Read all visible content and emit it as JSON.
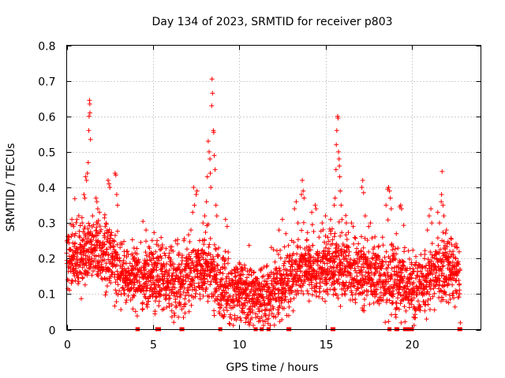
{
  "chart_data": {
    "type": "scatter",
    "title": "Day 134 of 2023, SRMTID for receiver p803",
    "xlabel": "GPS time / hours",
    "ylabel": "SRMTID / TECUs",
    "xlim": [
      0,
      24
    ],
    "ylim": [
      0,
      0.8
    ],
    "x_ticks": [
      "0",
      "5",
      "10",
      "15",
      "20"
    ],
    "x_tick_values": [
      0,
      5,
      10,
      15,
      20
    ],
    "y_ticks": [
      "0",
      "0.1",
      "0.2",
      "0.3",
      "0.4",
      "0.5",
      "0.6",
      "0.7",
      "0.8"
    ],
    "y_tick_values": [
      0,
      0.1,
      0.2,
      0.3,
      0.4,
      0.5,
      0.6,
      0.7,
      0.8
    ],
    "grid": true,
    "marker": "+",
    "color": "#ff0000",
    "x_extent": [
      0,
      22.8
    ],
    "sample_interval_hours": 0.0125,
    "seed": 134,
    "baseline_profile": [
      [
        0.0,
        0.19
      ],
      [
        0.8,
        0.2
      ],
      [
        1.5,
        0.24
      ],
      [
        2.5,
        0.2
      ],
      [
        3.5,
        0.14
      ],
      [
        4.5,
        0.15
      ],
      [
        5.5,
        0.14
      ],
      [
        6.5,
        0.13
      ],
      [
        7.5,
        0.16
      ],
      [
        8.3,
        0.18
      ],
      [
        8.8,
        0.12
      ],
      [
        9.5,
        0.11
      ],
      [
        10.5,
        0.1
      ],
      [
        11.0,
        0.08
      ],
      [
        11.5,
        0.09
      ],
      [
        12.5,
        0.12
      ],
      [
        13.5,
        0.16
      ],
      [
        14.5,
        0.17
      ],
      [
        15.5,
        0.18
      ],
      [
        16.5,
        0.17
      ],
      [
        17.5,
        0.15
      ],
      [
        18.5,
        0.14
      ],
      [
        19.5,
        0.12
      ],
      [
        20.5,
        0.12
      ],
      [
        21.2,
        0.15
      ],
      [
        22.0,
        0.18
      ],
      [
        22.8,
        0.15
      ]
    ],
    "spikes": [
      {
        "x": 0.3,
        "y": 0.31
      },
      {
        "x": 0.35,
        "y": 0.295
      },
      {
        "x": 0.4,
        "y": 0.29
      },
      {
        "x": 0.6,
        "y": 0.31
      },
      {
        "x": 0.9,
        "y": 0.3
      },
      {
        "x": 1.0,
        "y": 0.38
      },
      {
        "x": 1.05,
        "y": 0.37
      },
      {
        "x": 1.1,
        "y": 0.43
      },
      {
        "x": 1.15,
        "y": 0.42
      },
      {
        "x": 1.2,
        "y": 0.44
      },
      {
        "x": 1.25,
        "y": 0.47
      },
      {
        "x": 1.28,
        "y": 0.56
      },
      {
        "x": 1.3,
        "y": 0.6
      },
      {
        "x": 1.32,
        "y": 0.645
      },
      {
        "x": 1.34,
        "y": 0.635
      },
      {
        "x": 1.35,
        "y": 0.61
      },
      {
        "x": 1.38,
        "y": 0.535
      },
      {
        "x": 1.5,
        "y": 0.32
      },
      {
        "x": 1.7,
        "y": 0.37
      },
      {
        "x": 1.75,
        "y": 0.36
      },
      {
        "x": 1.8,
        "y": 0.34
      },
      {
        "x": 1.9,
        "y": 0.33
      },
      {
        "x": 2.4,
        "y": 0.42
      },
      {
        "x": 2.45,
        "y": 0.41
      },
      {
        "x": 2.5,
        "y": 0.4
      },
      {
        "x": 2.8,
        "y": 0.44
      },
      {
        "x": 2.85,
        "y": 0.435
      },
      {
        "x": 2.9,
        "y": 0.38
      },
      {
        "x": 2.95,
        "y": 0.35
      },
      {
        "x": 4.6,
        "y": 0.28
      },
      {
        "x": 5.2,
        "y": 0.24
      },
      {
        "x": 6.3,
        "y": 0.25
      },
      {
        "x": 7.2,
        "y": 0.28
      },
      {
        "x": 7.3,
        "y": 0.33
      },
      {
        "x": 7.35,
        "y": 0.4
      },
      {
        "x": 7.4,
        "y": 0.35
      },
      {
        "x": 7.5,
        "y": 0.38
      },
      {
        "x": 7.55,
        "y": 0.39
      },
      {
        "x": 7.9,
        "y": 0.3
      },
      {
        "x": 8.0,
        "y": 0.32
      },
      {
        "x": 8.1,
        "y": 0.36
      },
      {
        "x": 8.15,
        "y": 0.43
      },
      {
        "x": 8.2,
        "y": 0.53
      },
      {
        "x": 8.25,
        "y": 0.5
      },
      {
        "x": 8.3,
        "y": 0.48
      },
      {
        "x": 8.32,
        "y": 0.44
      },
      {
        "x": 8.35,
        "y": 0.4
      },
      {
        "x": 8.4,
        "y": 0.63
      },
      {
        "x": 8.42,
        "y": 0.705
      },
      {
        "x": 8.45,
        "y": 0.665
      },
      {
        "x": 8.5,
        "y": 0.56
      },
      {
        "x": 8.52,
        "y": 0.555
      },
      {
        "x": 8.55,
        "y": 0.49
      },
      {
        "x": 8.6,
        "y": 0.45
      },
      {
        "x": 8.65,
        "y": 0.35
      },
      {
        "x": 8.7,
        "y": 0.32
      },
      {
        "x": 9.2,
        "y": 0.31
      },
      {
        "x": 9.3,
        "y": 0.29
      },
      {
        "x": 12.3,
        "y": 0.28
      },
      {
        "x": 12.5,
        "y": 0.31
      },
      {
        "x": 12.7,
        "y": 0.27
      },
      {
        "x": 13.2,
        "y": 0.34
      },
      {
        "x": 13.3,
        "y": 0.36
      },
      {
        "x": 13.4,
        "y": 0.3
      },
      {
        "x": 13.6,
        "y": 0.38
      },
      {
        "x": 13.65,
        "y": 0.42
      },
      {
        "x": 13.7,
        "y": 0.39
      },
      {
        "x": 13.75,
        "y": 0.37
      },
      {
        "x": 14.2,
        "y": 0.33
      },
      {
        "x": 14.4,
        "y": 0.35
      },
      {
        "x": 14.45,
        "y": 0.34
      },
      {
        "x": 14.8,
        "y": 0.3
      },
      {
        "x": 15.0,
        "y": 0.32
      },
      {
        "x": 15.3,
        "y": 0.27
      },
      {
        "x": 15.5,
        "y": 0.35
      },
      {
        "x": 15.55,
        "y": 0.37
      },
      {
        "x": 15.6,
        "y": 0.45
      },
      {
        "x": 15.62,
        "y": 0.52
      },
      {
        "x": 15.65,
        "y": 0.56
      },
      {
        "x": 15.7,
        "y": 0.6
      },
      {
        "x": 15.72,
        "y": 0.595
      },
      {
        "x": 15.75,
        "y": 0.5
      },
      {
        "x": 15.78,
        "y": 0.48
      },
      {
        "x": 15.8,
        "y": 0.46
      },
      {
        "x": 15.82,
        "y": 0.43
      },
      {
        "x": 15.85,
        "y": 0.39
      },
      {
        "x": 15.9,
        "y": 0.35
      },
      {
        "x": 15.95,
        "y": 0.31
      },
      {
        "x": 16.2,
        "y": 0.3
      },
      {
        "x": 16.5,
        "y": 0.3
      },
      {
        "x": 16.6,
        "y": 0.29
      },
      {
        "x": 17.1,
        "y": 0.4
      },
      {
        "x": 17.15,
        "y": 0.42
      },
      {
        "x": 17.2,
        "y": 0.385
      },
      {
        "x": 17.3,
        "y": 0.32
      },
      {
        "x": 17.5,
        "y": 0.29
      },
      {
        "x": 17.6,
        "y": 0.3
      },
      {
        "x": 18.3,
        "y": 0.26
      },
      {
        "x": 18.5,
        "y": 0.35
      },
      {
        "x": 18.6,
        "y": 0.395
      },
      {
        "x": 18.65,
        "y": 0.4
      },
      {
        "x": 18.7,
        "y": 0.39
      },
      {
        "x": 18.75,
        "y": 0.37
      },
      {
        "x": 18.8,
        "y": 0.34
      },
      {
        "x": 19.1,
        "y": 0.27
      },
      {
        "x": 19.3,
        "y": 0.345
      },
      {
        "x": 19.35,
        "y": 0.35
      },
      {
        "x": 19.4,
        "y": 0.34
      },
      {
        "x": 20.9,
        "y": 0.28
      },
      {
        "x": 21.0,
        "y": 0.32
      },
      {
        "x": 21.1,
        "y": 0.34
      },
      {
        "x": 21.15,
        "y": 0.3
      },
      {
        "x": 21.5,
        "y": 0.33
      },
      {
        "x": 21.6,
        "y": 0.3
      },
      {
        "x": 21.7,
        "y": 0.36
      },
      {
        "x": 21.72,
        "y": 0.38
      },
      {
        "x": 21.75,
        "y": 0.445
      },
      {
        "x": 21.8,
        "y": 0.35
      },
      {
        "x": 21.85,
        "y": 0.32
      },
      {
        "x": 22.0,
        "y": 0.28
      },
      {
        "x": 22.2,
        "y": 0.22
      },
      {
        "x": 22.4,
        "y": 0.21
      }
    ],
    "zero_values": [
      4.1,
      4.12,
      5.25,
      5.3,
      5.35,
      6.65,
      6.7,
      8.9,
      10.95,
      11.3,
      11.7,
      12.85,
      12.9,
      15.4,
      15.45,
      18.7,
      19.1,
      19.15,
      19.6,
      19.7,
      19.8,
      20.0,
      22.75,
      22.8
    ]
  }
}
